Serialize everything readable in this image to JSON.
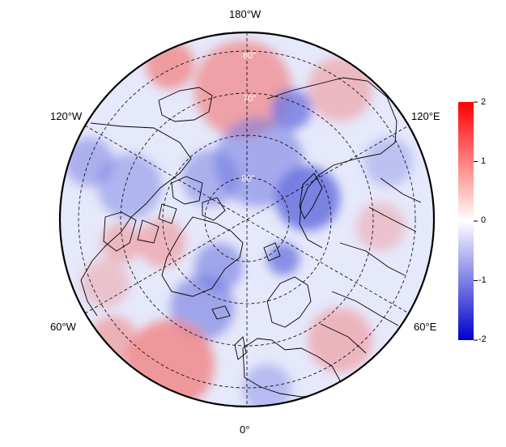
{
  "map": {
    "projection": "north-polar-stereographic",
    "longitude_labels": {
      "top": "180°W",
      "upper_left": "120°W",
      "upper_right": "120°E",
      "lower_left": "60°W",
      "lower_right": "60°E",
      "bottom": "0°"
    },
    "latitude_labels": [
      "60°",
      "70°",
      "80°"
    ],
    "gridlines": "dashed",
    "coastlines": true,
    "country_borders": true
  },
  "colorbar": {
    "ticks": [
      "2",
      "1",
      "0",
      "-1",
      "-2"
    ],
    "min": -2,
    "max": 2,
    "colors": {
      "high": "#ff0000",
      "mid": "#ffffff",
      "low": "#0000cc"
    }
  },
  "colors": {
    "gridline": "#000000",
    "coastline": "#000000",
    "positive_anomaly": "#f08a8a",
    "negative_anomaly": "#6f78e0"
  }
}
